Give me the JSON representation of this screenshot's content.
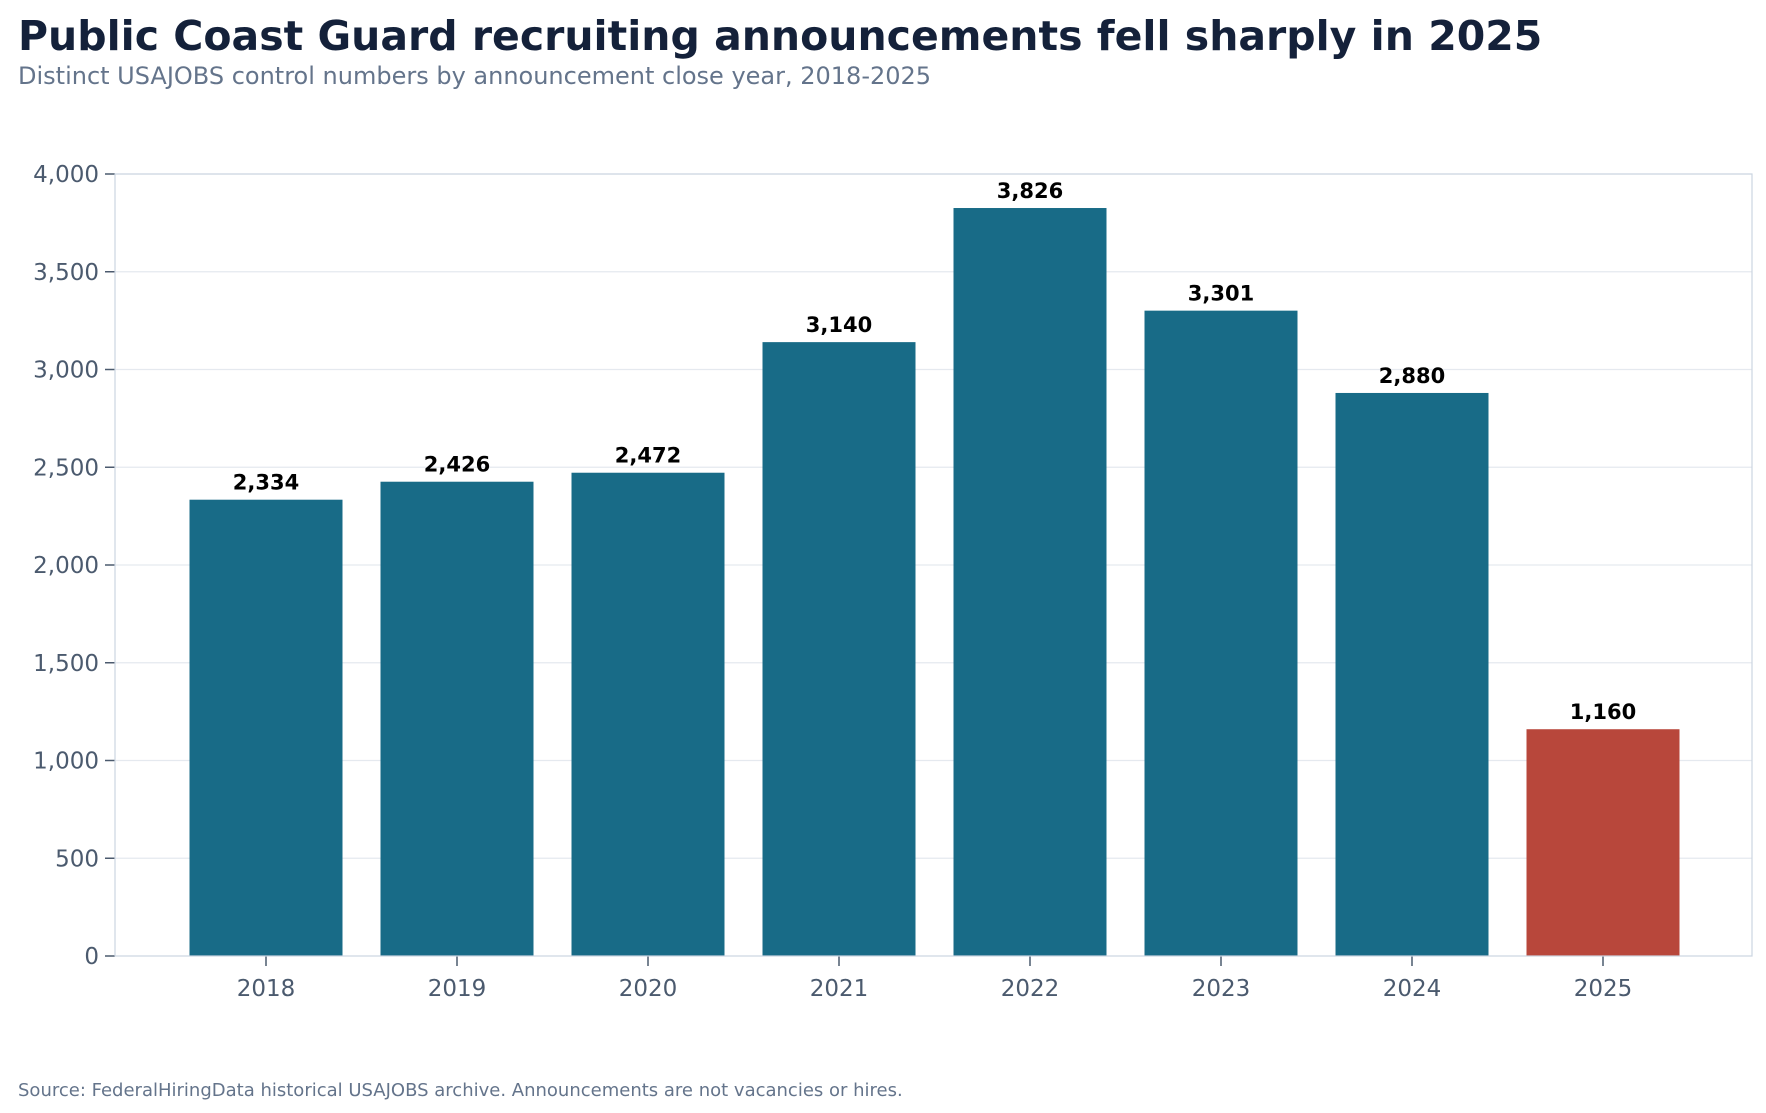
{
  "header": {
    "title": "Public Coast Guard recruiting announcements fell sharply in 2025",
    "subtitle": "Distinct USAJOBS control numbers by announcement close year, 2018-2025"
  },
  "footer": {
    "source": "Source: FederalHiringData historical USAJOBS archive. Announcements are not vacancies or hires."
  },
  "chart_data": {
    "type": "bar",
    "title": "Public Coast Guard recruiting announcements fell sharply in 2025",
    "subtitle": "Distinct USAJOBS control numbers by announcement close year, 2018-2025",
    "categories": [
      "2018",
      "2019",
      "2020",
      "2021",
      "2022",
      "2023",
      "2024",
      "2025"
    ],
    "values": [
      2334,
      2426,
      2472,
      3140,
      3826,
      3301,
      2880,
      1160
    ],
    "data_labels": [
      "2,334",
      "2,426",
      "2,472",
      "3,140",
      "3,826",
      "3,301",
      "2,880",
      "1,160"
    ],
    "xlabel": "",
    "ylabel": "",
    "ylim": [
      0,
      4000
    ],
    "yticks": [
      0,
      500,
      1000,
      1500,
      2000,
      2500,
      3000,
      3500,
      4000
    ],
    "ytick_labels": [
      "0",
      "500",
      "1,000",
      "1,500",
      "2,000",
      "2,500",
      "3,000",
      "3,500",
      "4,000"
    ],
    "grid": true,
    "legend": "none",
    "colors": {
      "default": "#186b87",
      "highlight": "#b8473b",
      "highlight_category": "2025"
    }
  }
}
